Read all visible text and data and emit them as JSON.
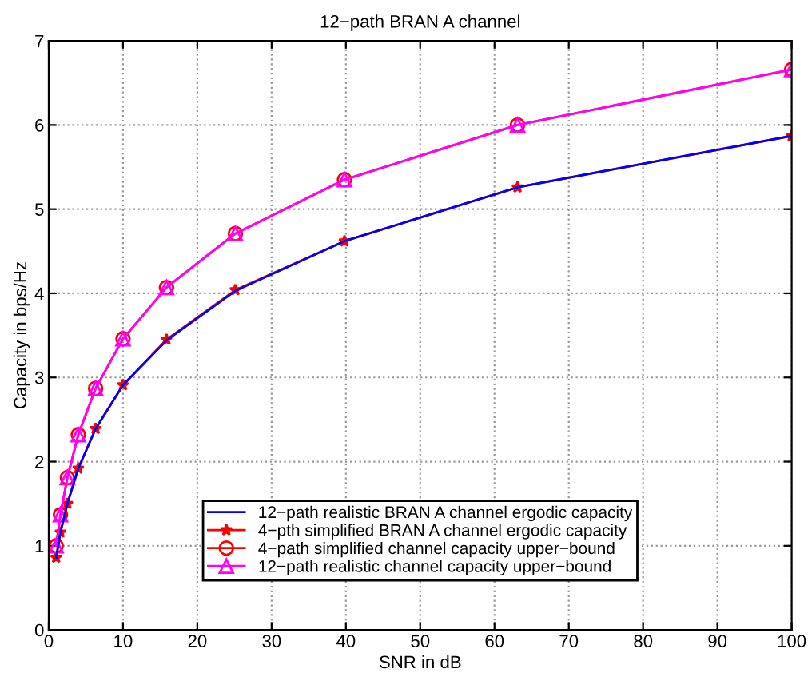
{
  "chart_data": {
    "type": "line",
    "title": "12−path BRAN A channel",
    "xlabel": "SNR in dB",
    "ylabel": "Capacity in bps/Hz",
    "x": [
      1,
      1.58,
      2.51,
      3.98,
      6.31,
      10,
      15.85,
      25.12,
      39.81,
      63.1,
      100
    ],
    "series": [
      {
        "name": "12−path realistic BRAN A channel ergodic capacity",
        "color": "#0000ff",
        "marker": "none",
        "values": [
          0.86,
          1.16,
          1.5,
          1.92,
          2.39,
          2.91,
          3.44,
          4.03,
          4.62,
          5.26,
          5.87
        ]
      },
      {
        "name": "4−pth simplified BRAN A channel ergodic capacity",
        "color": "#ff0000",
        "marker": "star",
        "values": [
          0.86,
          1.16,
          1.5,
          1.92,
          2.39,
          2.91,
          3.45,
          4.04,
          4.62,
          5.26,
          5.87
        ]
      },
      {
        "name": "4−path simplified channel capacity upper−bound",
        "color": "#ff0000",
        "marker": "circle",
        "values": [
          1,
          1.37,
          1.81,
          2.32,
          2.87,
          3.46,
          4.07,
          4.71,
          5.35,
          6.0,
          6.66
        ]
      },
      {
        "name": "12−path realistic channel capacity upper−bound",
        "color": "#ff00ff",
        "marker": "triangle",
        "values": [
          1,
          1.37,
          1.81,
          2.32,
          2.87,
          3.46,
          4.07,
          4.71,
          5.35,
          6.0,
          6.66
        ]
      }
    ],
    "xlim": [
      0,
      100
    ],
    "xticks": [
      0,
      10,
      20,
      30,
      40,
      50,
      60,
      70,
      80,
      90,
      100
    ],
    "ylim": [
      0,
      7
    ],
    "yticks": [
      0,
      1,
      2,
      3,
      4,
      5,
      6,
      7
    ],
    "grid": true,
    "legend": "bottom",
    "line_style": "solid"
  }
}
